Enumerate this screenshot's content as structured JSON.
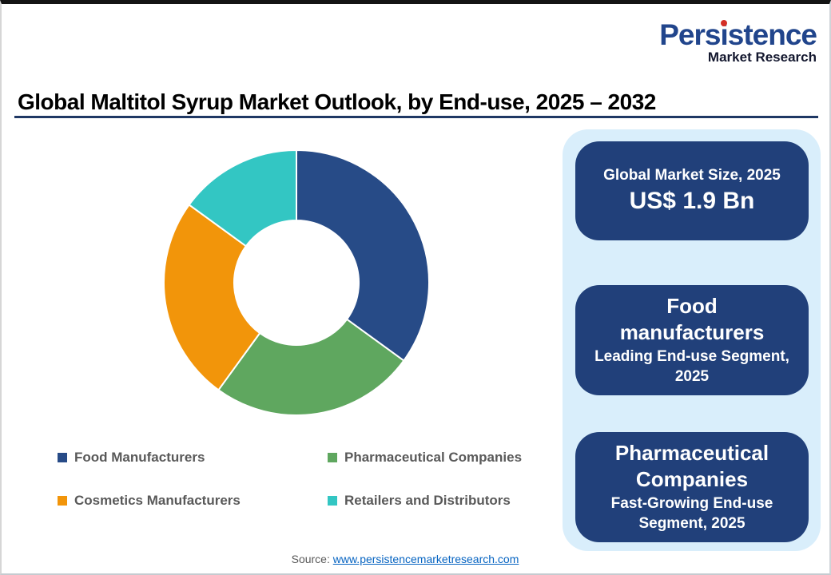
{
  "logo": {
    "part_a": "Pers",
    "part_i": "i",
    "part_b": "stence",
    "subtitle": "Market Research",
    "brand_blue": "#21458c",
    "dot_red": "#d42f27"
  },
  "header": {
    "title": "Global Maltitol Syrup Market Outlook, by End-use, 2025 – 2032",
    "rule_color": "#1f3864"
  },
  "chart_data": {
    "type": "pie",
    "subtype": "donut",
    "title": "Global Maltitol Syrup Market Outlook, by End-use, 2025 – 2032",
    "categories": [
      "Food Manufacturers",
      "Pharmaceutical Companies",
      "Cosmetics Manufacturers",
      "Retailers and Distributors"
    ],
    "values": [
      35,
      25,
      25,
      15
    ],
    "values_note": "percent, estimated from arc angles; no data labels shown in chart",
    "colors": [
      "#274b87",
      "#5fa75f",
      "#f2950a",
      "#33c6c3"
    ],
    "start_angle_deg": 0,
    "direction": "clockwise",
    "donut_hole_ratio": 0.47,
    "data_labels": "none",
    "legend_position": "bottom"
  },
  "sidebar": {
    "panel_bg": "#d9eefb",
    "card_bg": "#21407a",
    "cards": [
      {
        "title": "Global Market Size, 2025",
        "value": "US$ 1.9 Bn"
      },
      {
        "title": "Food manufacturers",
        "subtitle": "Leading End-use Segment, 2025"
      },
      {
        "title": "Pharmaceutical Companies",
        "subtitle": "Fast-Growing End-use Segment, 2025"
      }
    ]
  },
  "footer": {
    "source_label": "Source:",
    "source_link": "www.persistencemarketresearch.com",
    "link_color": "#0563c1"
  }
}
